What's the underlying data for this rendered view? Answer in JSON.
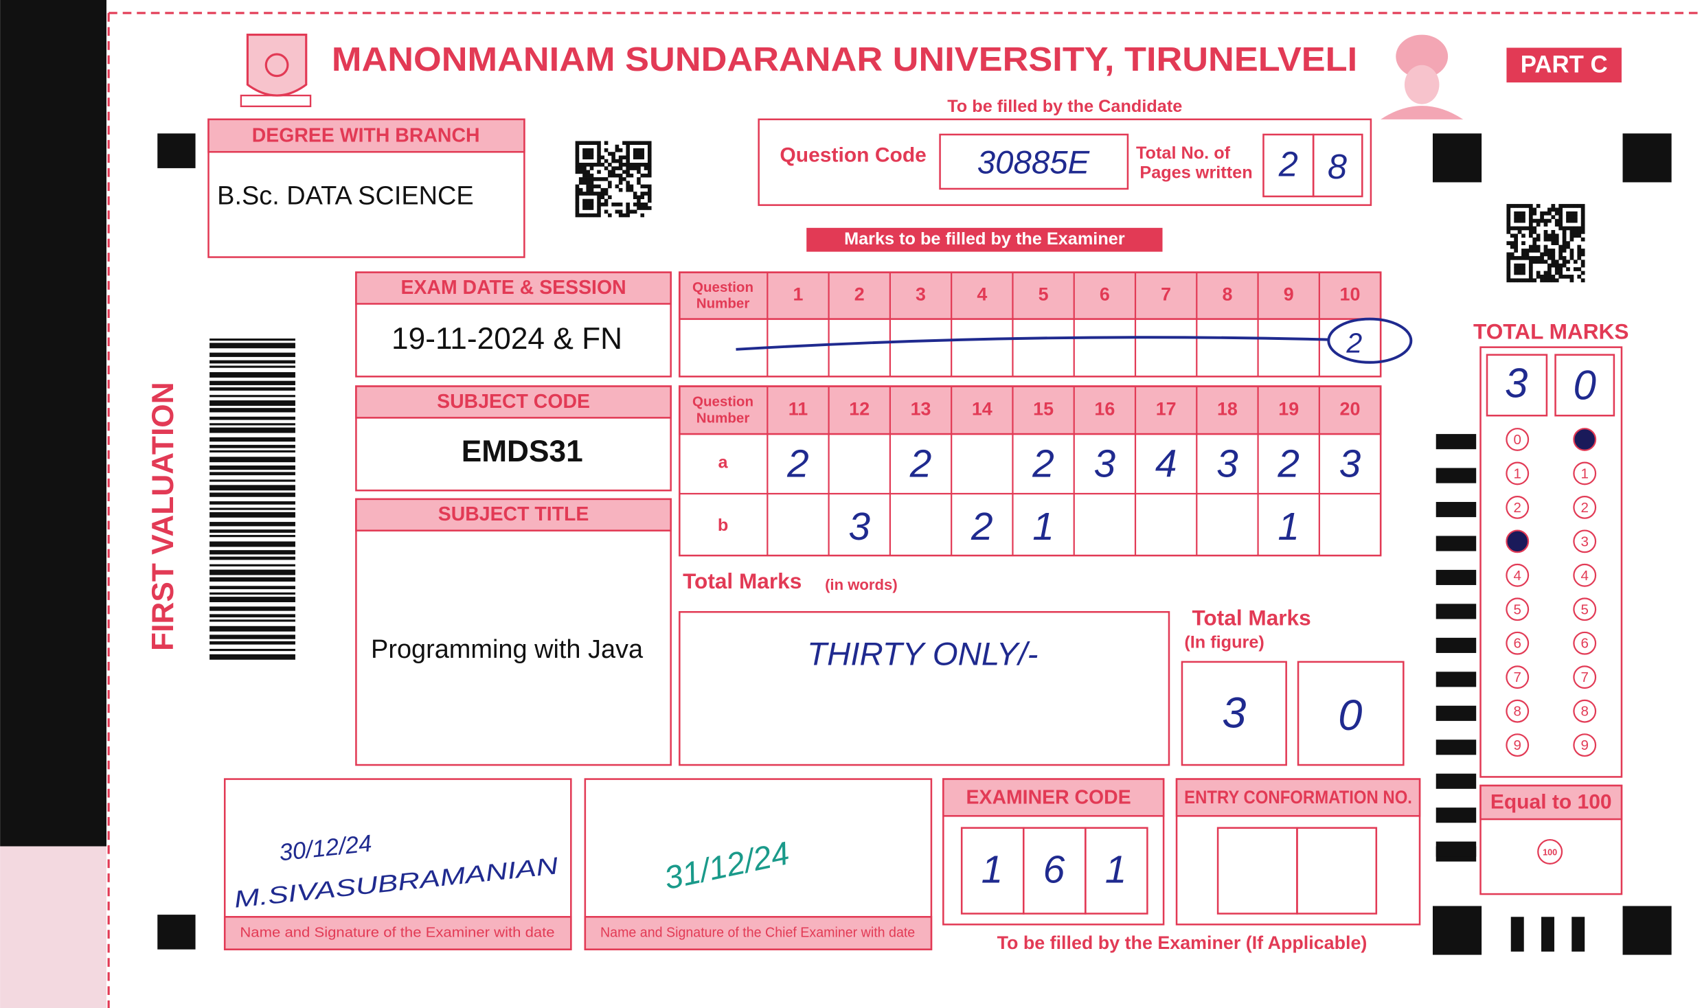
{
  "header": {
    "university": "MANONMANIAM SUNDARANAR UNIVERSITY, TIRUNELVELI",
    "part": "PART C",
    "candidate_note": "To be filled by the Candidate"
  },
  "side_label": "FIRST VALUATION",
  "degree": {
    "label": "DEGREE WITH BRANCH",
    "value": "B.Sc. DATA SCIENCE"
  },
  "question_code": {
    "label": "Question Code",
    "value": "30885E"
  },
  "pages": {
    "label": [
      "Total No. of",
      "Pages written"
    ],
    "digits": [
      "2",
      "8"
    ]
  },
  "examiner_note": "Marks to be filled by the Examiner",
  "exam_date": {
    "label": "EXAM DATE & SESSION",
    "value": "19-11-2024 & FN"
  },
  "subject_code": {
    "label": "SUBJECT CODE",
    "value": "EMDS31"
  },
  "subject_title": {
    "label": "SUBJECT TITLE",
    "value": "Programming with Java"
  },
  "grid1": {
    "header": [
      "Question",
      "Number"
    ],
    "numbers": [
      "1",
      "2",
      "3",
      "4",
      "5",
      "6",
      "7",
      "8",
      "9",
      "10"
    ],
    "marks": [
      null,
      null,
      null,
      null,
      null,
      null,
      null,
      null,
      null,
      "2"
    ]
  },
  "grid2": {
    "header": [
      "Question",
      "Number"
    ],
    "numbers": [
      "11",
      "12",
      "13",
      "14",
      "15",
      "16",
      "17",
      "18",
      "19",
      "20"
    ],
    "rows": [
      {
        "label": "a",
        "marks": [
          "2",
          null,
          "2",
          null,
          "2",
          "3",
          "4",
          "3",
          "2",
          "3"
        ]
      },
      {
        "label": "b",
        "marks": [
          null,
          "3",
          null,
          "2",
          "1",
          null,
          null,
          null,
          "1",
          null
        ]
      }
    ]
  },
  "total_words": {
    "label": "Total Marks",
    "sub": "(in words)",
    "value": "THIRTY ONLY/-"
  },
  "total_figure": {
    "label": "Total Marks",
    "sub": "(In figure)",
    "digits": [
      "3",
      "0"
    ]
  },
  "total_panel": {
    "label": "TOTAL MARKS",
    "digits": [
      "3",
      "0"
    ],
    "bubbles": [
      "0",
      "1",
      "2",
      "3",
      "4",
      "5",
      "6",
      "7",
      "8",
      "9"
    ]
  },
  "equal_100": {
    "label": "Equal to 100",
    "bubble": "100"
  },
  "examiner_signature": {
    "date": "30/12/24",
    "name": "M.SIVASUBRAMANIAN",
    "caption": "Name and Signature of the Examiner with date"
  },
  "chief_signature": {
    "date": "31/12/24",
    "caption": "Name and Signature of the Chief Examiner with date"
  },
  "examiner_code": {
    "label": "EXAMINER CODE",
    "digits": [
      "1",
      "6",
      "1"
    ]
  },
  "entry_no": {
    "label": "ENTRY CONFORMATION NO."
  },
  "footer_note": "To be filled by the Examiner (If Applicable)"
}
